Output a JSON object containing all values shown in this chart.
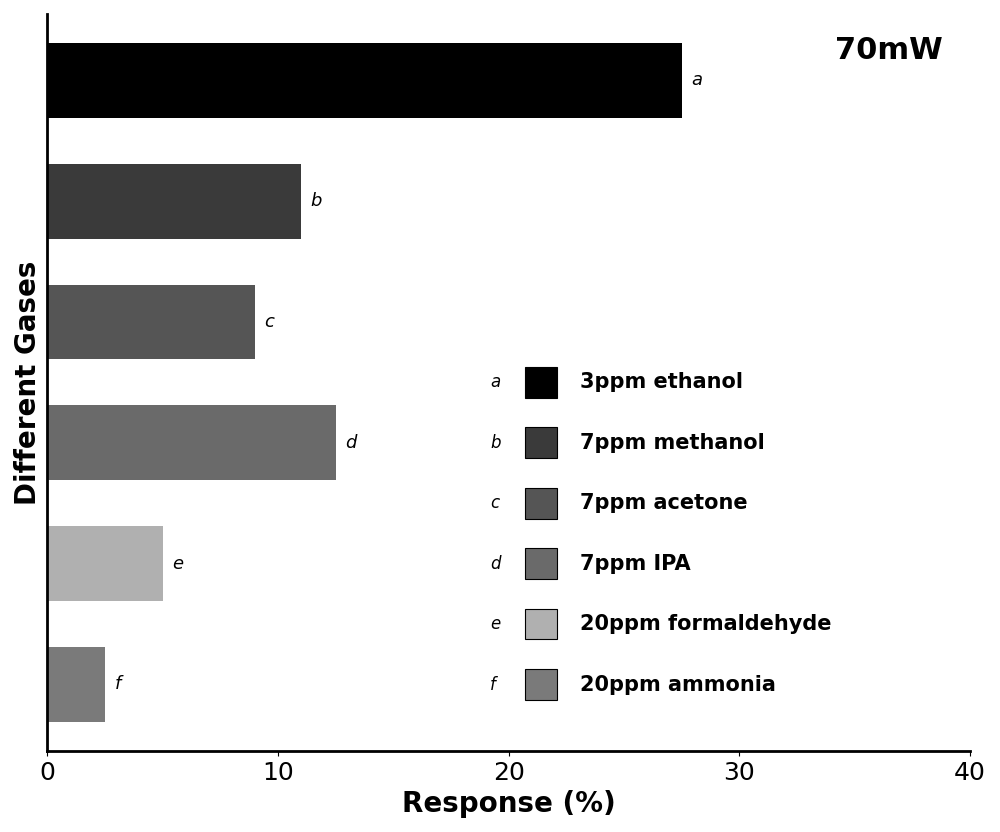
{
  "title": "70mW",
  "xlabel": "Response (%)",
  "ylabel": "Different Gases",
  "xlim": [
    0,
    40
  ],
  "xticks": [
    0,
    10,
    20,
    30,
    40
  ],
  "bars": [
    {
      "label": "a",
      "value": 27.5,
      "color": "#000000",
      "legend": "3ppm ethanol"
    },
    {
      "label": "b",
      "value": 11.0,
      "color": "#3a3a3a",
      "legend": "7ppm methanol"
    },
    {
      "label": "c",
      "value": 9.0,
      "color": "#555555",
      "legend": "7ppm acetone"
    },
    {
      "label": "d",
      "value": 12.5,
      "color": "#6a6a6a",
      "legend": "7ppm IPA"
    },
    {
      "label": "e",
      "value": 5.0,
      "color": "#b0b0b0",
      "legend": "20ppm formaldehyde"
    },
    {
      "label": "f",
      "value": 2.5,
      "color": "#7a7a7a",
      "legend": "20ppm ammonia"
    }
  ],
  "bar_height": 0.62,
  "title_fontsize": 22,
  "axis_label_fontsize": 20,
  "tick_fontsize": 18,
  "legend_fontsize": 15,
  "annotation_fontsize": 13,
  "background_color": "#ffffff"
}
